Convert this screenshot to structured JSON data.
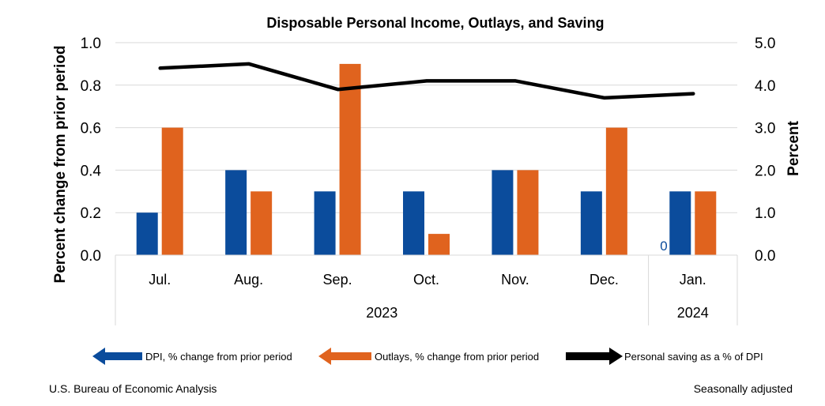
{
  "chart_data": {
    "type": "bar",
    "title": "Disposable Personal Income, Outlays, and Saving",
    "ylabel": "Percent change from prior period",
    "y2label": "Percent",
    "ylim": [
      0,
      1.0
    ],
    "y2lim": [
      0,
      5.0
    ],
    "yticks": [
      "0.0",
      "0.2",
      "0.4",
      "0.6",
      "0.8",
      "1.0"
    ],
    "y2ticks": [
      "0.0",
      "1.0",
      "2.0",
      "3.0",
      "4.0",
      "5.0"
    ],
    "categories": [
      "Jul.",
      "Aug.",
      "Sep.",
      "Oct.",
      "Nov.",
      "Dec.",
      "Jan."
    ],
    "year_groups": [
      {
        "label": "2023",
        "span": 6
      },
      {
        "label": "2024",
        "span": 1
      }
    ],
    "series": [
      {
        "name": "DPI, % change from prior period",
        "kind": "bar",
        "color": "#0b4c9c",
        "values": [
          0.2,
          0.4,
          0.3,
          0.3,
          0.4,
          0.3,
          0.3
        ]
      },
      {
        "name": "Outlays, % change from prior period",
        "kind": "bar",
        "color": "#e0631e",
        "values": [
          0.6,
          0.3,
          0.9,
          0.1,
          0.4,
          0.6,
          0.3
        ]
      },
      {
        "name": "Personal saving as a % of DPI",
        "kind": "line",
        "axis": "right",
        "color": "#000000",
        "values": [
          4.4,
          4.5,
          3.9,
          4.1,
          4.1,
          3.7,
          3.8
        ]
      }
    ],
    "stray_label": "0",
    "stray_label_color": "#0b4c9c"
  },
  "footer": {
    "source": "U.S. Bureau of Economic Analysis",
    "note": "Seasonally adjusted"
  }
}
